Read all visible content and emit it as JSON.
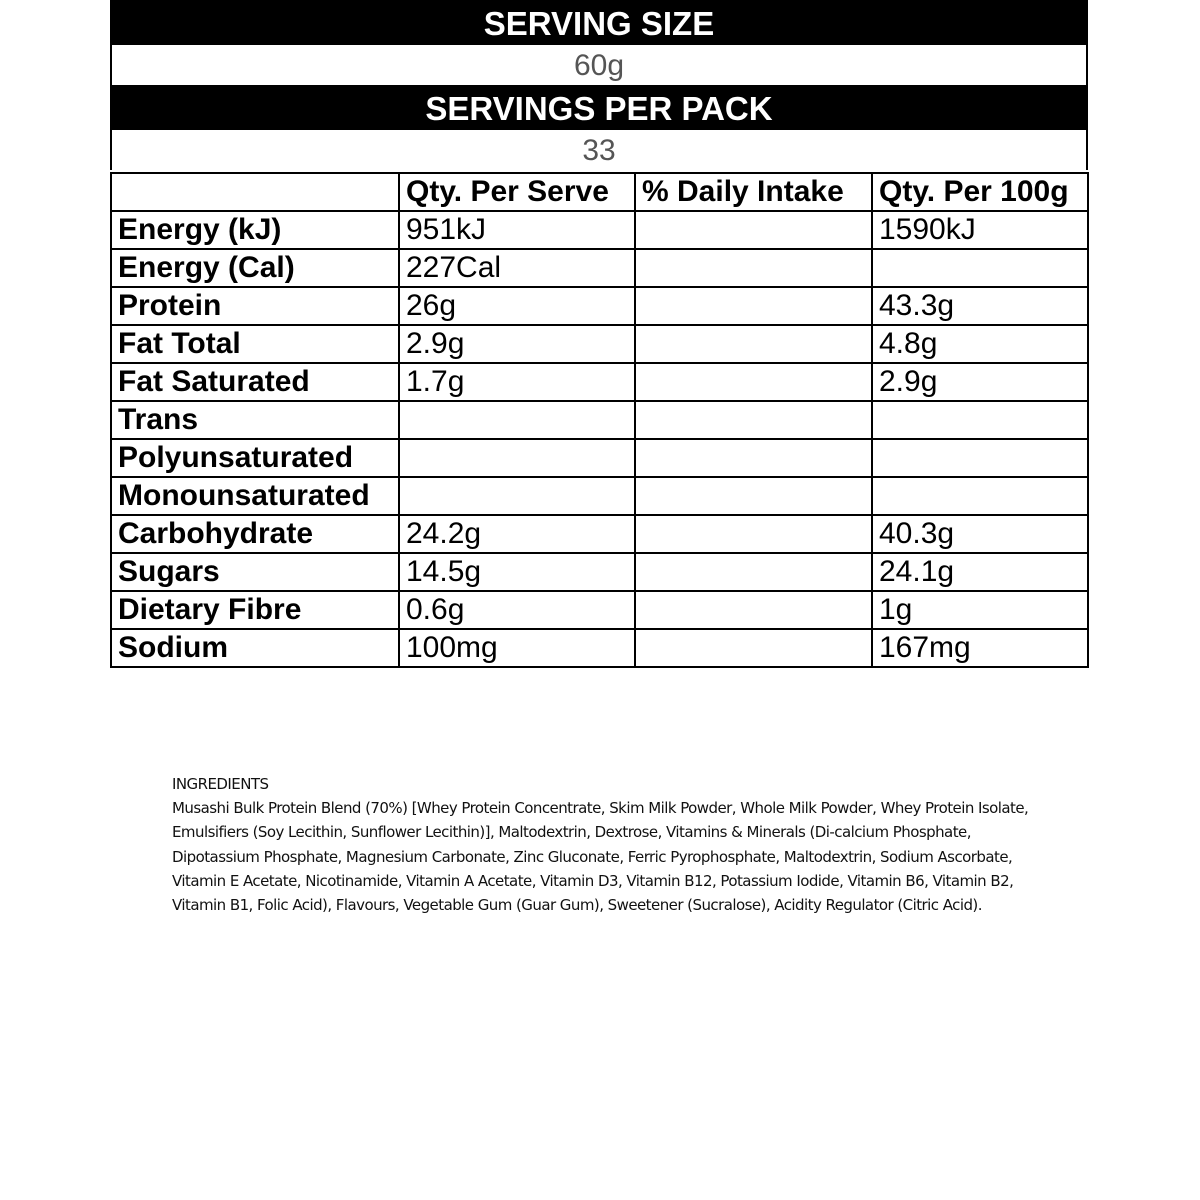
{
  "serving_size": {
    "label": "SERVING SIZE",
    "value": "60g"
  },
  "servings_per_pack": {
    "label": "SERVINGS PER PACK",
    "value": "33"
  },
  "table": {
    "headers": [
      "",
      "Qty. Per Serve",
      "% Daily Intake",
      "Qty. Per 100g"
    ],
    "rows": [
      [
        "Energy (kJ)",
        "951kJ",
        "",
        "1590kJ"
      ],
      [
        "Energy (Cal)",
        "227Cal",
        "",
        ""
      ],
      [
        "Protein",
        "26g",
        "",
        "43.3g"
      ],
      [
        "Fat Total",
        "2.9g",
        "",
        "4.8g"
      ],
      [
        "Fat Saturated",
        "1.7g",
        "",
        "2.9g"
      ],
      [
        "Trans",
        "",
        "",
        ""
      ],
      [
        "Polyunsaturated",
        "",
        "",
        ""
      ],
      [
        "Monounsaturated",
        "",
        "",
        ""
      ],
      [
        "Carbohydrate",
        "24.2g",
        "",
        "40.3g"
      ],
      [
        "Sugars",
        "14.5g",
        "",
        "24.1g"
      ],
      [
        "Dietary Fibre",
        "0.6g",
        "",
        "1g"
      ],
      [
        "Sodium",
        "100mg",
        "",
        "167mg"
      ]
    ]
  },
  "ingredients": {
    "title": "INGREDIENTS",
    "text": "Musashi Bulk Protein Blend (70%) [Whey Protein Concentrate, Skim Milk Powder, Whole Milk Powder, Whey Protein Isolate, Emulsifiers (Soy Lecithin, Sunflower Lecithin)], Maltodextrin, Dextrose, Vitamins & Minerals (Di-calcium Phosphate, Dipotassium Phosphate, Magnesium Carbonate, Zinc Gluconate, Ferric Pyrophosphate, Maltodextrin, Sodium Ascorbate, Vitamin E Acetate, Nicotinamide, Vitamin A Acetate, Vitamin D3, Vitamin B12, Potassium Iodide, Vitamin B6, Vitamin B2, Vitamin B1, Folic Acid), Flavours, Vegetable Gum (Guar Gum), Sweetener (Sucralose), Acidity Regulator (Citric Acid)."
  }
}
